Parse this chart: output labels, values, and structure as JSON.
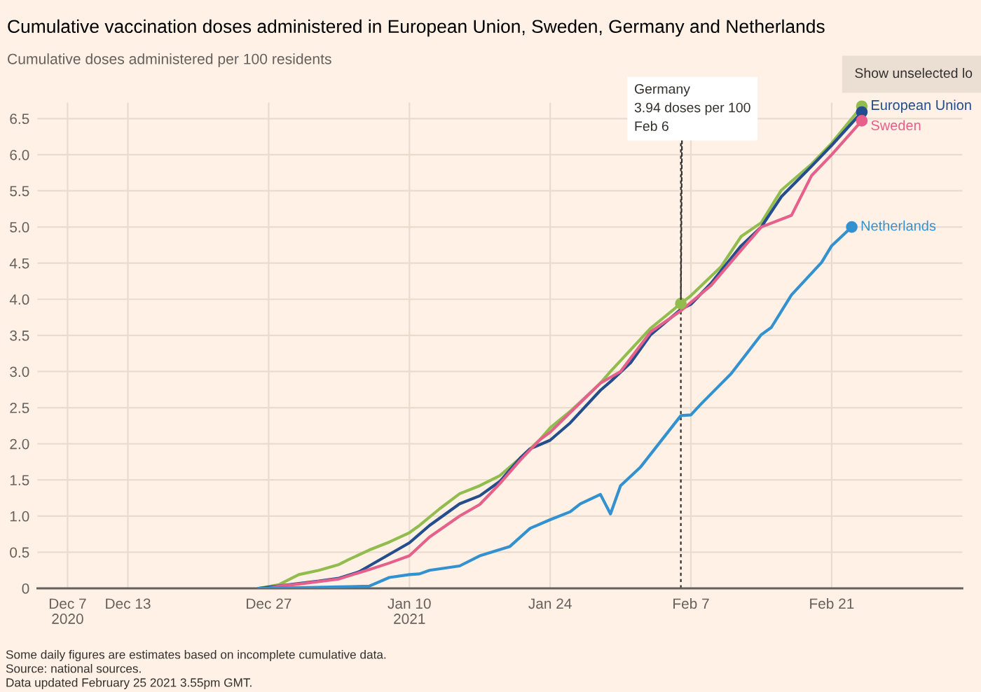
{
  "chart_data": {
    "type": "line",
    "title": "Cumulative vaccination doses administered in European Union, Sweden, Germany and Netherlands",
    "subtitle": "Cumulative doses administered per 100 residents",
    "xlim": [
      "2020-12-04",
      "2021-03-06"
    ],
    "xticks": [
      {
        "value": "2020-12-07",
        "label": "Dec 7\n2020"
      },
      {
        "value": "2020-12-13",
        "label": "Dec 13"
      },
      {
        "value": "2020-12-27",
        "label": "Dec 27"
      },
      {
        "value": "2021-01-10",
        "label": "Jan 10\n2021"
      },
      {
        "value": "2021-01-24",
        "label": "Jan 24"
      },
      {
        "value": "2021-02-07",
        "label": "Feb 7"
      },
      {
        "value": "2021-02-21",
        "label": "Feb 21"
      }
    ],
    "ylim": [
      0,
      6.72
    ],
    "yticks": [
      0,
      0.5,
      {
        "value": 1,
        "label": "1.0"
      },
      1.5,
      {
        "value": 2,
        "label": "2.0"
      },
      2.5,
      {
        "value": 3,
        "label": "3.0"
      },
      3.5,
      {
        "value": 4,
        "label": "4.0"
      },
      4.5,
      {
        "value": 5,
        "label": "5.0"
      },
      5.5,
      {
        "value": 6,
        "label": "6.0"
      },
      6.5
    ],
    "grid": true,
    "line_style": "solid",
    "series": [
      {
        "color": "#92bd4e",
        "x": [
          "2020-12-26",
          "2020-12-28",
          "2020-12-30",
          "2021-01-01",
          "2021-01-03",
          "2021-01-04",
          "2021-01-06",
          "2021-01-08",
          "2021-01-10",
          "2021-01-11",
          "2021-01-13",
          "2021-01-15",
          "2021-01-17",
          "2021-01-19",
          "2021-01-21",
          "2021-01-23",
          "2021-01-24",
          "2021-01-26",
          "2021-01-29",
          "2021-01-30",
          "2021-02-01",
          "2021-02-03",
          "2021-02-06",
          "2021-02-07",
          "2021-02-10",
          "2021-02-12",
          "2021-02-14",
          "2021-02-16",
          "2021-02-19",
          "2021-02-21",
          "2021-02-24"
        ],
        "values": [
          0,
          0.05,
          0.19,
          0.25,
          0.33,
          0.4,
          0.53,
          0.64,
          0.77,
          0.87,
          1.1,
          1.31,
          1.42,
          1.56,
          1.8,
          2.06,
          2.22,
          2.45,
          2.84,
          3.0,
          3.3,
          3.6,
          3.94,
          4.05,
          4.45,
          4.87,
          5.06,
          5.51,
          5.87,
          6.16,
          6.67
        ]
      },
      {
        "name": "European Union",
        "color": "#234d8c",
        "x": [
          "2020-12-26",
          "2020-12-29",
          "2021-01-01",
          "2021-01-03",
          "2021-01-05",
          "2021-01-07",
          "2021-01-09",
          "2021-01-10",
          "2021-01-12",
          "2021-01-15",
          "2021-01-17",
          "2021-01-19",
          "2021-01-21",
          "2021-01-22",
          "2021-01-24",
          "2021-01-26",
          "2021-01-29",
          "2021-01-30",
          "2021-02-01",
          "2021-02-03",
          "2021-02-06",
          "2021-02-07",
          "2021-02-09",
          "2021-02-12",
          "2021-02-14",
          "2021-02-16",
          "2021-02-19",
          "2021-02-21",
          "2021-02-24"
        ],
        "values": [
          0,
          0.05,
          0.1,
          0.14,
          0.23,
          0.39,
          0.55,
          0.63,
          0.87,
          1.17,
          1.28,
          1.48,
          1.8,
          1.93,
          2.05,
          2.29,
          2.74,
          2.86,
          3.12,
          3.51,
          3.86,
          3.93,
          4.22,
          4.74,
          5.0,
          5.42,
          5.84,
          6.13,
          6.59
        ]
      },
      {
        "name": "Sweden",
        "color": "#e5608a",
        "x": [
          "2020-12-27",
          "2020-12-28",
          "2020-12-30",
          "2021-01-03",
          "2021-01-06",
          "2021-01-08",
          "2021-01-10",
          "2021-01-12",
          "2021-01-15",
          "2021-01-17",
          "2021-01-19",
          "2021-01-21",
          "2021-01-23",
          "2021-01-24",
          "2021-01-29",
          "2021-01-31",
          "2021-02-03",
          "2021-02-06",
          "2021-02-09",
          "2021-02-12",
          "2021-02-14",
          "2021-02-17",
          "2021-02-19",
          "2021-02-21",
          "2021-02-24"
        ],
        "values": [
          0,
          0.03,
          0.06,
          0.13,
          0.26,
          0.35,
          0.45,
          0.71,
          1.0,
          1.16,
          1.45,
          1.77,
          2.06,
          2.16,
          2.84,
          3.0,
          3.55,
          3.84,
          4.19,
          4.68,
          5.0,
          5.16,
          5.71,
          6.0,
          6.47
        ]
      },
      {
        "name": "Netherlands",
        "color": "#3491cf",
        "x": [
          "2020-12-26",
          "2020-12-30",
          "2021-01-06",
          "2021-01-08",
          "2021-01-10",
          "2021-01-11",
          "2021-01-12",
          "2021-01-15",
          "2021-01-17",
          "2021-01-20",
          "2021-01-22",
          "2021-01-24",
          "2021-01-26",
          "2021-01-27",
          "2021-01-29",
          "2021-01-30",
          "2021-01-31",
          "2021-02-02",
          "2021-02-06",
          "2021-02-07",
          "2021-02-08",
          "2021-02-11",
          "2021-02-14",
          "2021-02-15",
          "2021-02-17",
          "2021-02-20",
          "2021-02-21",
          "2021-02-23"
        ],
        "values": [
          0,
          0.01,
          0.03,
          0.15,
          0.19,
          0.2,
          0.25,
          0.31,
          0.45,
          0.58,
          0.83,
          0.95,
          1.06,
          1.17,
          1.3,
          1.03,
          1.42,
          1.68,
          2.39,
          2.4,
          2.55,
          2.97,
          3.51,
          3.61,
          4.06,
          4.51,
          4.74,
          5.0
        ]
      }
    ],
    "ref_lines": [
      {
        "axis": "x",
        "value": "2021-02-06",
        "line_style": "dashed",
        "color": "#33302e"
      }
    ],
    "annotations": [
      {
        "text": "Germany\n3.94 doses per 100\nFeb 6",
        "x": "2021-02-06",
        "y": 3.94
      },
      "Show unselected lo",
      "Some daily figures are estimates based on incomplete cumulative data.",
      "Source: national sources.",
      "Data updated February 25 2021 3.55pm GMT."
    ]
  }
}
